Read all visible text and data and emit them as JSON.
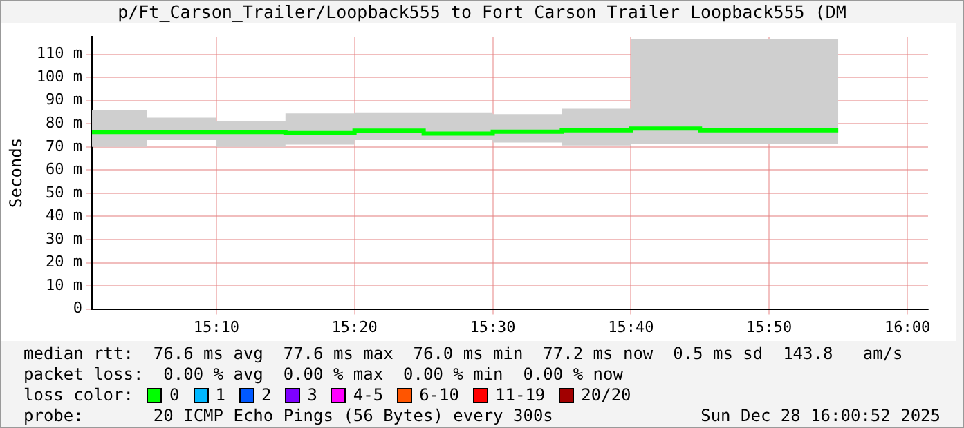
{
  "chart_data": {
    "type": "step",
    "title": "p/Ft_Carson_Trailer/Loopback555 to Fort Carson Trailer Loopback555 (DM",
    "ylabel": "Seconds",
    "legend_title": "loss color:",
    "x": [
      15.0167,
      15.0833,
      15.1667,
      15.25,
      15.3333,
      15.4167,
      15.5,
      15.5833,
      15.6667,
      15.75,
      15.8333,
      15.9167
    ],
    "series": [
      {
        "name": "0",
        "color": "#00ff00",
        "values": [
          75.8,
          76.4,
          76.4,
          76.4,
          76.0,
          77.0,
          75.8,
          76.6,
          77.2,
          77.9,
          77.2,
          77.2
        ],
        "lower": [
          70.0,
          70.0,
          72.9,
          70.0,
          71.0,
          72.9,
          72.9,
          71.9,
          70.6,
          71.3,
          71.3,
          71.3
        ],
        "upper": [
          85.9,
          85.9,
          82.6,
          81.2,
          84.5,
          84.9,
          84.9,
          84.2,
          86.5,
          116.6,
          116.6,
          116.6
        ]
      },
      {
        "name": "1",
        "color": "#00b8ff",
        "values": [
          null,
          null,
          null,
          null,
          null,
          null,
          null,
          null,
          null,
          null,
          null,
          null
        ]
      },
      {
        "name": "2",
        "color": "#0059ff",
        "values": [
          null,
          null,
          null,
          null,
          null,
          null,
          null,
          null,
          null,
          null,
          null,
          null
        ]
      },
      {
        "name": "3",
        "color": "#7e00ff",
        "values": [
          null,
          null,
          null,
          null,
          null,
          null,
          null,
          null,
          null,
          null,
          null,
          null
        ]
      },
      {
        "name": "4-5",
        "color": "#ff00ff",
        "values": [
          null,
          null,
          null,
          null,
          null,
          null,
          null,
          null,
          null,
          null,
          null,
          null
        ]
      },
      {
        "name": "6-10",
        "color": "#ff5500",
        "values": [
          null,
          null,
          null,
          null,
          null,
          null,
          null,
          null,
          null,
          null,
          null,
          null
        ]
      },
      {
        "name": "11-19",
        "color": "#ff0000",
        "values": [
          null,
          null,
          null,
          null,
          null,
          null,
          null,
          null,
          null,
          null,
          null,
          null
        ]
      },
      {
        "name": "20/20",
        "color": "#a10000",
        "values": [
          null,
          null,
          null,
          null,
          null,
          null,
          null,
          null,
          null,
          null,
          null,
          null
        ]
      }
    ],
    "xlim": [
      15.0167,
      16.025
    ],
    "xticks": [
      {
        "value": 15.1667,
        "label": "15:10"
      },
      {
        "value": 15.3333,
        "label": "15:20"
      },
      {
        "value": 15.5,
        "label": "15:30"
      },
      {
        "value": 15.6667,
        "label": "15:40"
      },
      {
        "value": 15.8333,
        "label": "15:50"
      },
      {
        "value": 16,
        "label": "16:00"
      }
    ],
    "ylim": [
      0,
      117.6
    ],
    "yticks": [
      0,
      {
        "value": 10,
        "label": "10 m"
      },
      {
        "value": 20,
        "label": "20 m"
      },
      {
        "value": 30,
        "label": "30 m"
      },
      {
        "value": 40,
        "label": "40 m"
      },
      {
        "value": 50,
        "label": "50 m"
      },
      {
        "value": 60,
        "label": "60 m"
      },
      {
        "value": 70,
        "label": "70 m"
      },
      {
        "value": 80,
        "label": "80 m"
      },
      {
        "value": 90,
        "label": "90 m"
      },
      {
        "value": 100,
        "label": "100 m"
      },
      {
        "value": 110,
        "label": "110 m"
      }
    ],
    "grid": true,
    "legend": "bottom",
    "line_style": "solid",
    "marker": "none",
    "annotations": [
      "median rtt:  76.6 ms avg  77.6 ms max  76.0 ms min  77.2 ms now  0.5 ms sd  143.8   am/s",
      "packet loss:  0.00 % avg  0.00 % max  0.00 % min  0.00 % now",
      "probe:       20 ICMP Echo Pings (56 Bytes) every 300s",
      "Sun Dec 28 16:00:52 2025"
    ]
  }
}
